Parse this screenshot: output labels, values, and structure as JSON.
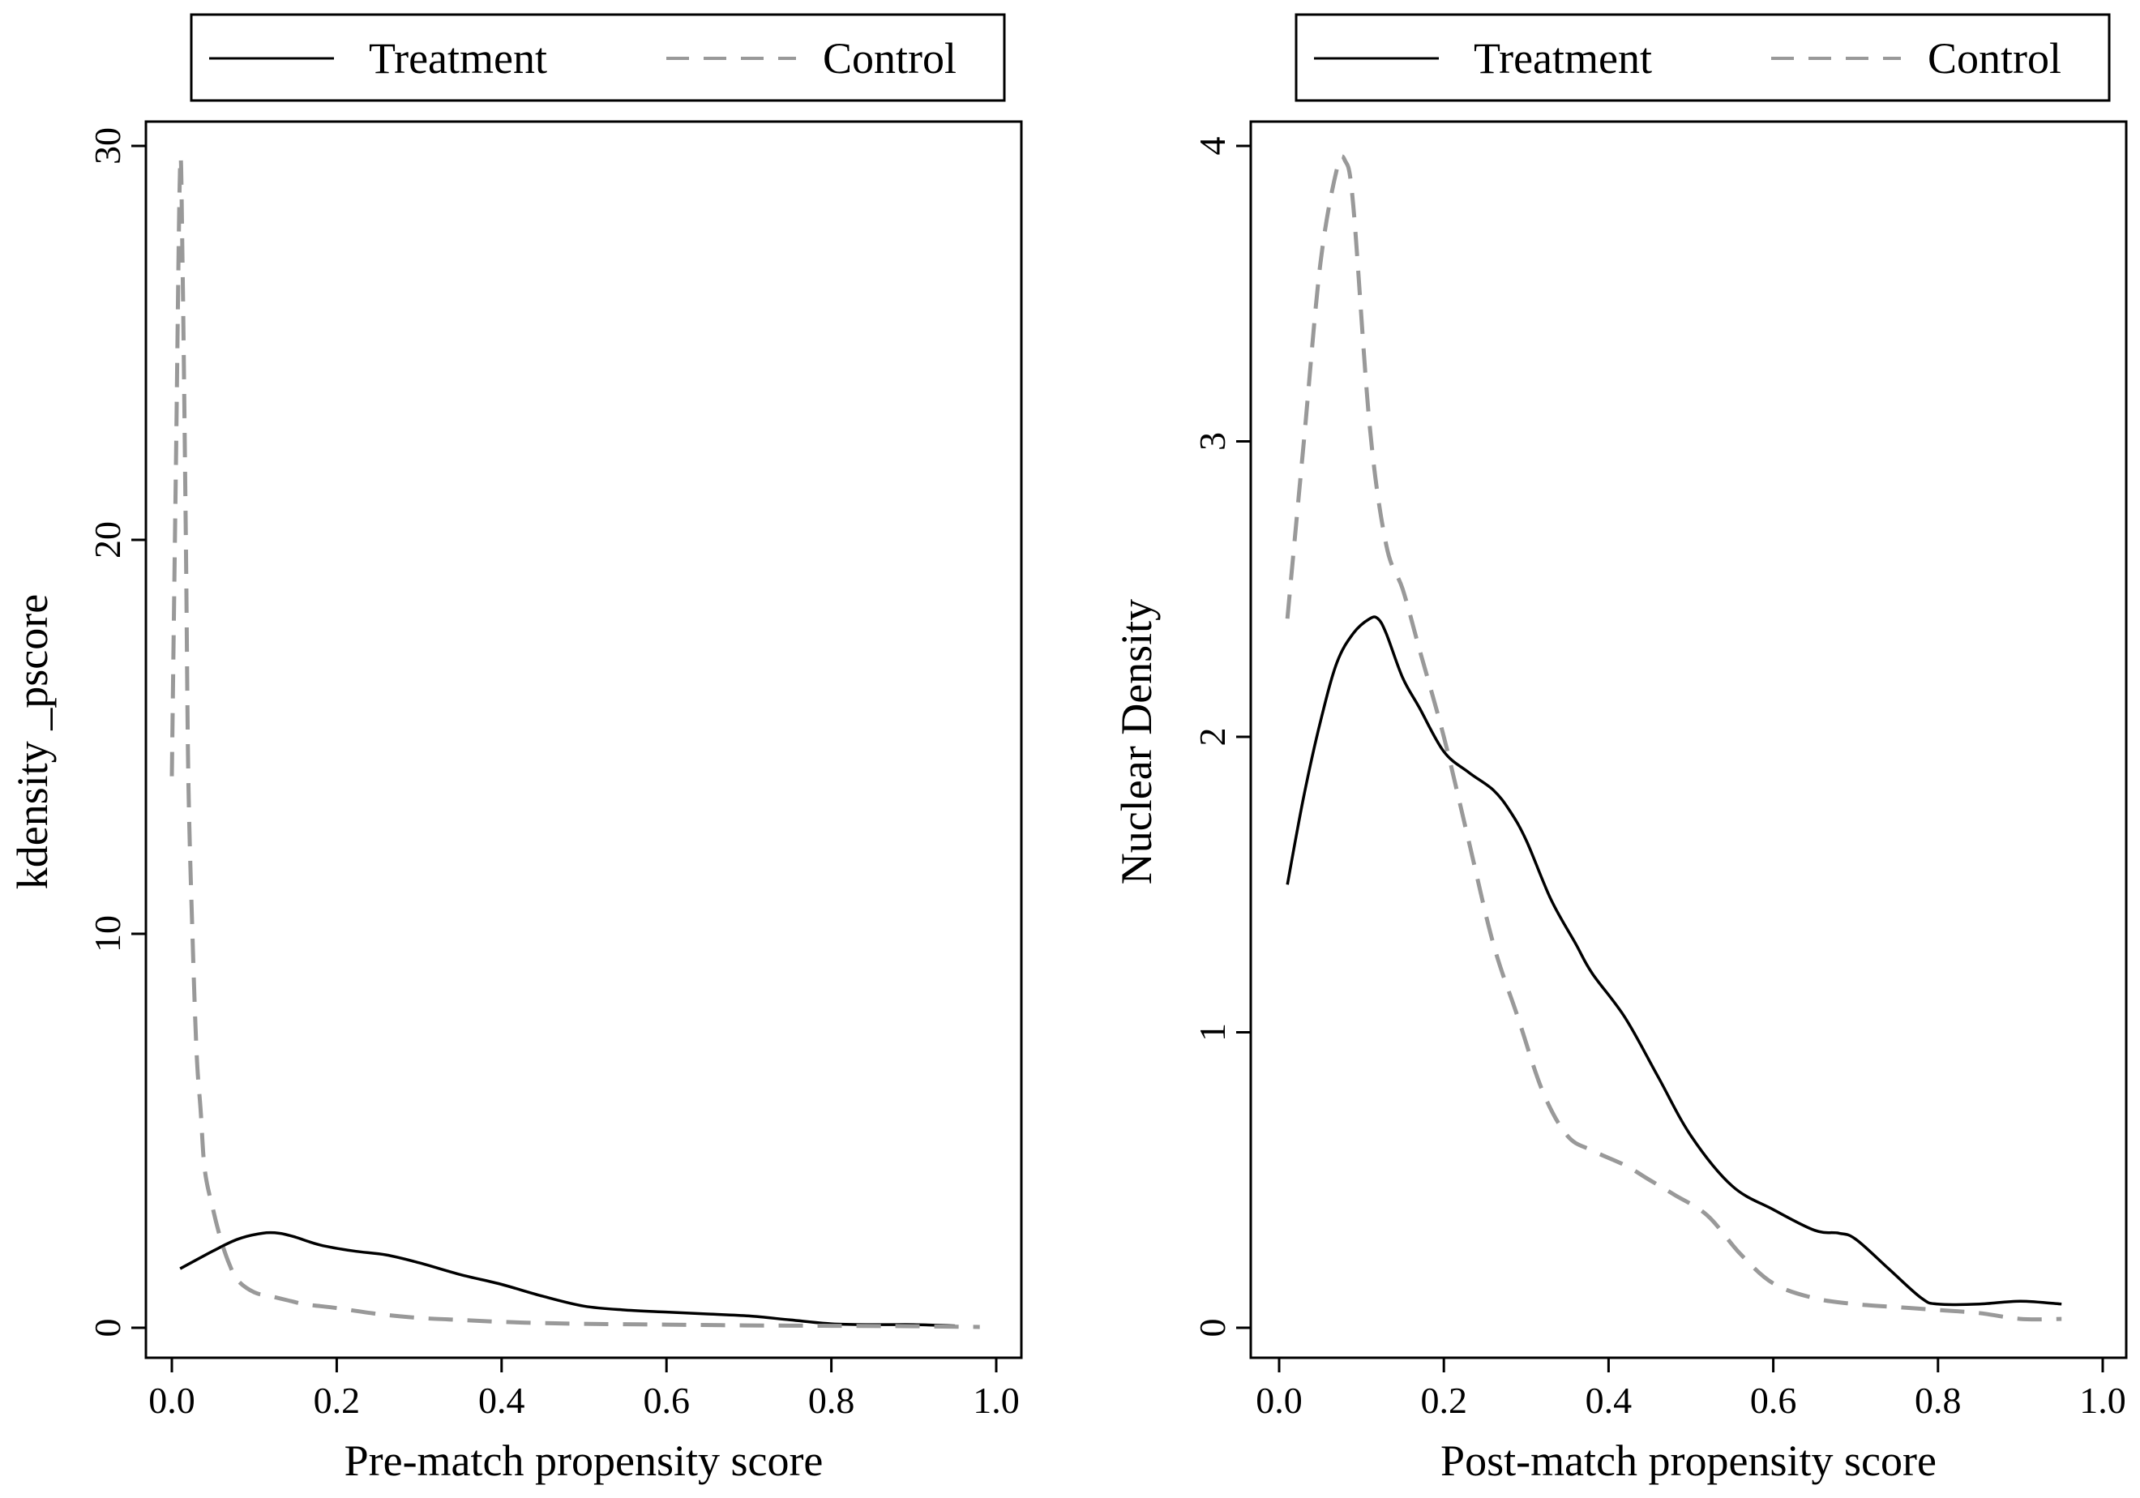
{
  "figure": {
    "panels": [
      {
        "id": "pre",
        "legend": {
          "entries": [
            {
              "label": "Treatment",
              "style": "solid",
              "color": "#000000"
            },
            {
              "label": "Control",
              "style": "dashed",
              "color": "#999999"
            }
          ]
        }
      },
      {
        "id": "post",
        "legend": {
          "entries": [
            {
              "label": "Treatment",
              "style": "solid",
              "color": "#000000"
            },
            {
              "label": "Control",
              "style": "dashed",
              "color": "#999999"
            }
          ]
        }
      }
    ]
  },
  "chart_data": [
    {
      "type": "line",
      "title": "",
      "xlabel": "Pre-match propensity score",
      "ylabel": "kdensity _pscore",
      "xlim": [
        0,
        1.0
      ],
      "ylim": [
        0,
        30
      ],
      "xticks": [
        "0.0",
        "0.2",
        "0.4",
        "0.6",
        "0.8",
        "1.0"
      ],
      "yticks": [
        "0",
        "10",
        "20",
        "30"
      ],
      "grid": false,
      "legend": "top",
      "series": [
        {
          "name": "Treatment",
          "color": "#000000",
          "dash": "solid",
          "x": [
            0.01,
            0.05,
            0.08,
            0.11,
            0.13,
            0.15,
            0.18,
            0.22,
            0.26,
            0.3,
            0.35,
            0.4,
            0.45,
            0.5,
            0.55,
            0.6,
            0.65,
            0.7,
            0.75,
            0.8,
            0.85,
            0.9,
            0.95
          ],
          "y": [
            1.5,
            1.95,
            2.25,
            2.4,
            2.4,
            2.3,
            2.1,
            1.95,
            1.85,
            1.65,
            1.35,
            1.1,
            0.8,
            0.55,
            0.45,
            0.4,
            0.35,
            0.3,
            0.2,
            0.1,
            0.08,
            0.08,
            0.05
          ]
        },
        {
          "name": "Control",
          "color": "#999999",
          "dash": "dashed",
          "x": [
            0.0,
            0.005,
            0.01,
            0.013,
            0.017,
            0.02,
            0.025,
            0.03,
            0.035,
            0.04,
            0.05,
            0.06,
            0.07,
            0.08,
            0.1,
            0.12,
            0.14,
            0.16,
            0.18,
            0.2,
            0.25,
            0.3,
            0.35,
            0.4,
            0.45,
            0.5,
            0.6,
            0.7,
            0.8,
            0.9,
            0.98
          ],
          "y": [
            14.0,
            22.0,
            29.5,
            27.0,
            20.0,
            14.0,
            10.0,
            7.0,
            5.5,
            4.0,
            3.0,
            2.2,
            1.6,
            1.2,
            0.9,
            0.8,
            0.7,
            0.6,
            0.55,
            0.5,
            0.35,
            0.25,
            0.2,
            0.15,
            0.12,
            0.1,
            0.08,
            0.06,
            0.05,
            0.04,
            0.02
          ]
        }
      ]
    },
    {
      "type": "line",
      "title": "",
      "xlabel": "Post-match propensity score",
      "ylabel": "Nuclear Density",
      "xlim": [
        0,
        1.0
      ],
      "ylim": [
        0,
        4
      ],
      "xticks": [
        "0.0",
        "0.2",
        "0.4",
        "0.6",
        "0.8",
        "1.0"
      ],
      "yticks": [
        "0",
        "1",
        "2",
        "3",
        "4"
      ],
      "grid": false,
      "legend": "top",
      "series": [
        {
          "name": "Treatment",
          "color": "#000000",
          "dash": "solid",
          "x": [
            0.01,
            0.03,
            0.05,
            0.07,
            0.09,
            0.11,
            0.12,
            0.13,
            0.15,
            0.17,
            0.2,
            0.23,
            0.26,
            0.28,
            0.3,
            0.33,
            0.36,
            0.38,
            0.42,
            0.46,
            0.5,
            0.55,
            0.6,
            0.65,
            0.68,
            0.7,
            0.74,
            0.78,
            0.8,
            0.85,
            0.9,
            0.95
          ],
          "y": [
            1.5,
            1.8,
            2.05,
            2.25,
            2.35,
            2.4,
            2.4,
            2.35,
            2.2,
            2.1,
            1.95,
            1.88,
            1.82,
            1.75,
            1.65,
            1.45,
            1.3,
            1.2,
            1.05,
            0.85,
            0.65,
            0.48,
            0.4,
            0.33,
            0.32,
            0.3,
            0.2,
            0.1,
            0.08,
            0.08,
            0.09,
            0.08
          ]
        },
        {
          "name": "Control",
          "color": "#999999",
          "dash": "dashed",
          "x": [
            0.01,
            0.03,
            0.05,
            0.07,
            0.08,
            0.09,
            0.11,
            0.13,
            0.15,
            0.17,
            0.2,
            0.23,
            0.26,
            0.29,
            0.32,
            0.35,
            0.38,
            0.42,
            0.45,
            0.48,
            0.52,
            0.56,
            0.6,
            0.65,
            0.7,
            0.75,
            0.8,
            0.85,
            0.9,
            0.95
          ],
          "y": [
            2.4,
            3.0,
            3.6,
            3.92,
            3.95,
            3.8,
            3.05,
            2.65,
            2.5,
            2.3,
            2.0,
            1.65,
            1.3,
            1.05,
            0.8,
            0.65,
            0.6,
            0.55,
            0.5,
            0.45,
            0.38,
            0.25,
            0.15,
            0.1,
            0.08,
            0.07,
            0.06,
            0.05,
            0.03,
            0.03
          ]
        }
      ]
    }
  ]
}
